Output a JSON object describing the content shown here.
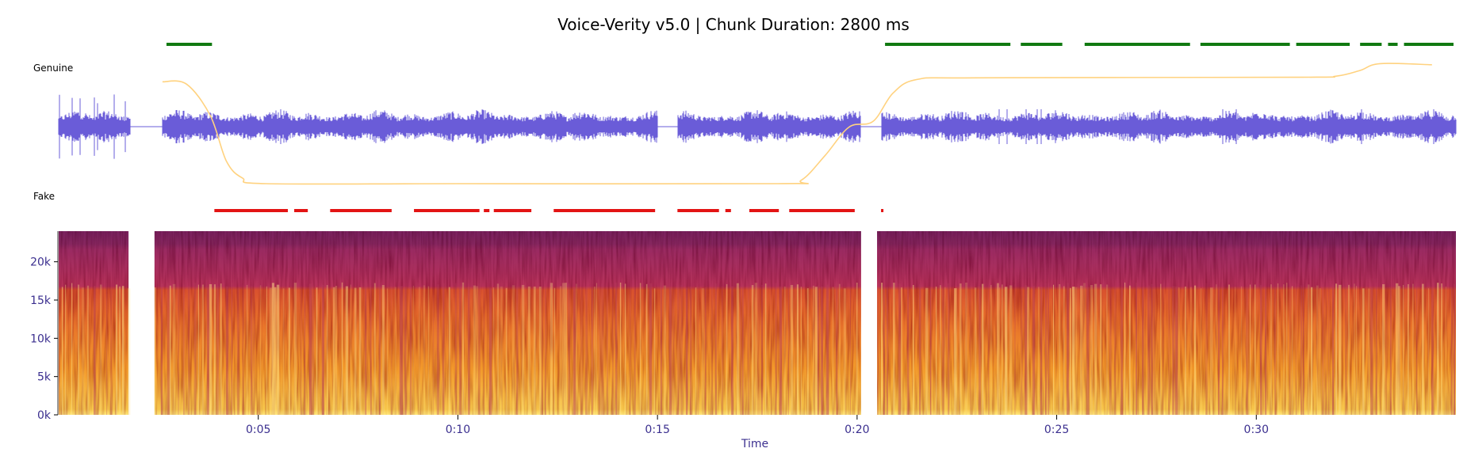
{
  "title": "Voice-Verity v5.0 | Chunk Duration: 2800 ms",
  "colors": {
    "genuine": "#117a11",
    "fake": "#e31414",
    "waveform": "#6a5cd8",
    "probability": "#ffd27f",
    "axis_text": "#3b2f8f"
  },
  "chart_data": {
    "type": "spectrogram",
    "title": "Voice-Verity v5.0 | Chunk Duration: 2800 ms",
    "xlabel": "Time",
    "ylabel": "",
    "duration_s": 35.0,
    "xlim_s": [
      0,
      35.0
    ],
    "ylim_hz": [
      0,
      24000
    ],
    "x_ticks": [
      {
        "t": 5,
        "label": "0:05"
      },
      {
        "t": 10,
        "label": "0:10"
      },
      {
        "t": 15,
        "label": "0:15"
      },
      {
        "t": 20,
        "label": "0:20"
      },
      {
        "t": 25,
        "label": "0:25"
      },
      {
        "t": 30,
        "label": "0:30"
      }
    ],
    "y_ticks": [
      {
        "hz": 0,
        "label": "0k"
      },
      {
        "hz": 5000,
        "label": "5k"
      },
      {
        "hz": 10000,
        "label": "10k"
      },
      {
        "hz": 15000,
        "label": "15k"
      },
      {
        "hz": 20000,
        "label": "20k"
      }
    ],
    "band_labels": {
      "genuine": "Genuine",
      "fake": "Fake"
    },
    "spectrogram_segments_s": [
      [
        0.0,
        1.75
      ],
      [
        2.4,
        20.1
      ],
      [
        20.5,
        35.0
      ]
    ],
    "genuine_segments_s": [
      [
        2.7,
        3.9
      ],
      [
        20.7,
        23.9
      ],
      [
        24.1,
        25.2
      ],
      [
        25.7,
        28.4
      ],
      [
        28.6,
        30.9
      ],
      [
        31.0,
        32.4
      ],
      [
        32.6,
        33.2
      ],
      [
        33.3,
        33.6
      ],
      [
        33.7,
        35.0
      ]
    ],
    "fake_segments_s": [
      [
        3.9,
        5.8
      ],
      [
        5.9,
        6.3
      ],
      [
        6.8,
        8.4
      ],
      [
        8.9,
        10.6
      ],
      [
        10.65,
        10.85
      ],
      [
        10.9,
        11.9
      ],
      [
        12.4,
        15.0
      ],
      [
        15.5,
        16.6
      ],
      [
        16.7,
        16.9
      ],
      [
        17.3,
        18.1
      ],
      [
        18.3,
        20.0
      ],
      [
        20.6,
        20.7
      ]
    ],
    "waveform_silent_s": [
      [
        1.8,
        2.6
      ],
      [
        15.0,
        15.5
      ],
      [
        20.1,
        20.6
      ]
    ],
    "genuine_probability": [
      {
        "t": 2.6,
        "p": 0.9
      },
      {
        "t": 3.2,
        "p": 0.88
      },
      {
        "t": 3.8,
        "p": 0.6
      },
      {
        "t": 4.2,
        "p": 0.2
      },
      {
        "t": 4.6,
        "p": 0.05
      },
      {
        "t": 5.2,
        "p": 0.0
      },
      {
        "t": 10.0,
        "p": 0.0
      },
      {
        "t": 18.0,
        "p": 0.0
      },
      {
        "t": 18.6,
        "p": 0.03
      },
      {
        "t": 19.2,
        "p": 0.25
      },
      {
        "t": 19.8,
        "p": 0.5
      },
      {
        "t": 20.4,
        "p": 0.55
      },
      {
        "t": 20.9,
        "p": 0.8
      },
      {
        "t": 21.5,
        "p": 0.92
      },
      {
        "t": 23.0,
        "p": 0.935
      },
      {
        "t": 31.0,
        "p": 0.94
      },
      {
        "t": 32.0,
        "p": 0.95
      },
      {
        "t": 32.6,
        "p": 1.0
      },
      {
        "t": 33.1,
        "p": 1.06
      },
      {
        "t": 34.4,
        "p": 1.05
      }
    ]
  }
}
